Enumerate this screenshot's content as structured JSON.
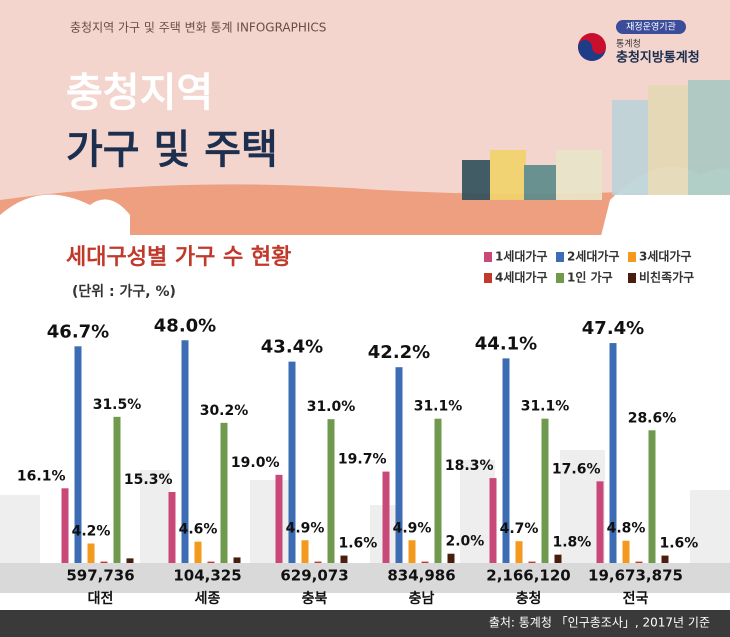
{
  "header": {
    "subtitle": "충청지역 가구 및 주택 변화 통계 INFOGRAPHICS",
    "title_line1": "충청지역",
    "title_line2": "가구 및 주택",
    "logo_tag": "재정운영기관",
    "logo_org": "통계청",
    "logo_name": "충청지방통계청"
  },
  "chart_data": {
    "type": "bar",
    "title": "세대구성별 가구 수 현황",
    "unit": "(단위 : 가구, %)",
    "categories": [
      "대전",
      "세종",
      "충북",
      "충남",
      "충청",
      "전국"
    ],
    "totals": [
      "597,736",
      "104,325",
      "629,073",
      "834,986",
      "2,166,120",
      "19,673,875"
    ],
    "ylim": [
      0,
      50
    ],
    "series": [
      {
        "name": "1세대가구",
        "color": "#c9487a",
        "values": [
          16.1,
          15.3,
          19.0,
          19.7,
          18.3,
          17.6
        ],
        "value_labels": [
          "16.1%",
          "15.3%",
          "19.0%",
          "19.7%",
          "18.3%",
          "17.6%"
        ]
      },
      {
        "name": "2세대가구",
        "color": "#3b6cb4",
        "values": [
          46.7,
          48.0,
          43.4,
          42.2,
          44.1,
          47.4
        ],
        "value_labels": [
          "46.7%",
          "48.0%",
          "43.4%",
          "42.2%",
          "44.1%",
          "47.4%"
        ]
      },
      {
        "name": "3세대가구",
        "color": "#f39a1e",
        "values": [
          4.2,
          4.6,
          4.9,
          4.9,
          4.7,
          4.8
        ],
        "value_labels": [
          "4.2%",
          "4.6%",
          "4.9%",
          "4.9%",
          "4.7%",
          "4.8%"
        ]
      },
      {
        "name": "4세대가구",
        "color": "#c0392b",
        "values": [
          0.3,
          0.3,
          0.3,
          0.3,
          0.3,
          0.3
        ],
        "value_labels": [
          null,
          null,
          null,
          null,
          null,
          null
        ]
      },
      {
        "name": "1인 가구",
        "color": "#6f9a4e",
        "values": [
          31.5,
          30.2,
          31.0,
          31.1,
          31.1,
          28.6
        ],
        "value_labels": [
          "31.5%",
          "30.2%",
          "31.0%",
          "31.1%",
          "31.1%",
          "28.6%"
        ]
      },
      {
        "name": "비친족가구",
        "color": "#4a1e0e",
        "values": [
          1.0,
          1.2,
          1.6,
          2.0,
          1.8,
          1.6
        ],
        "value_labels": [
          null,
          null,
          "1.6%",
          "2.0%",
          "1.8%",
          "1.6%"
        ]
      }
    ]
  },
  "footer": {
    "source": "출처: 통계청 「인구총조사」, 2017년 기준"
  }
}
